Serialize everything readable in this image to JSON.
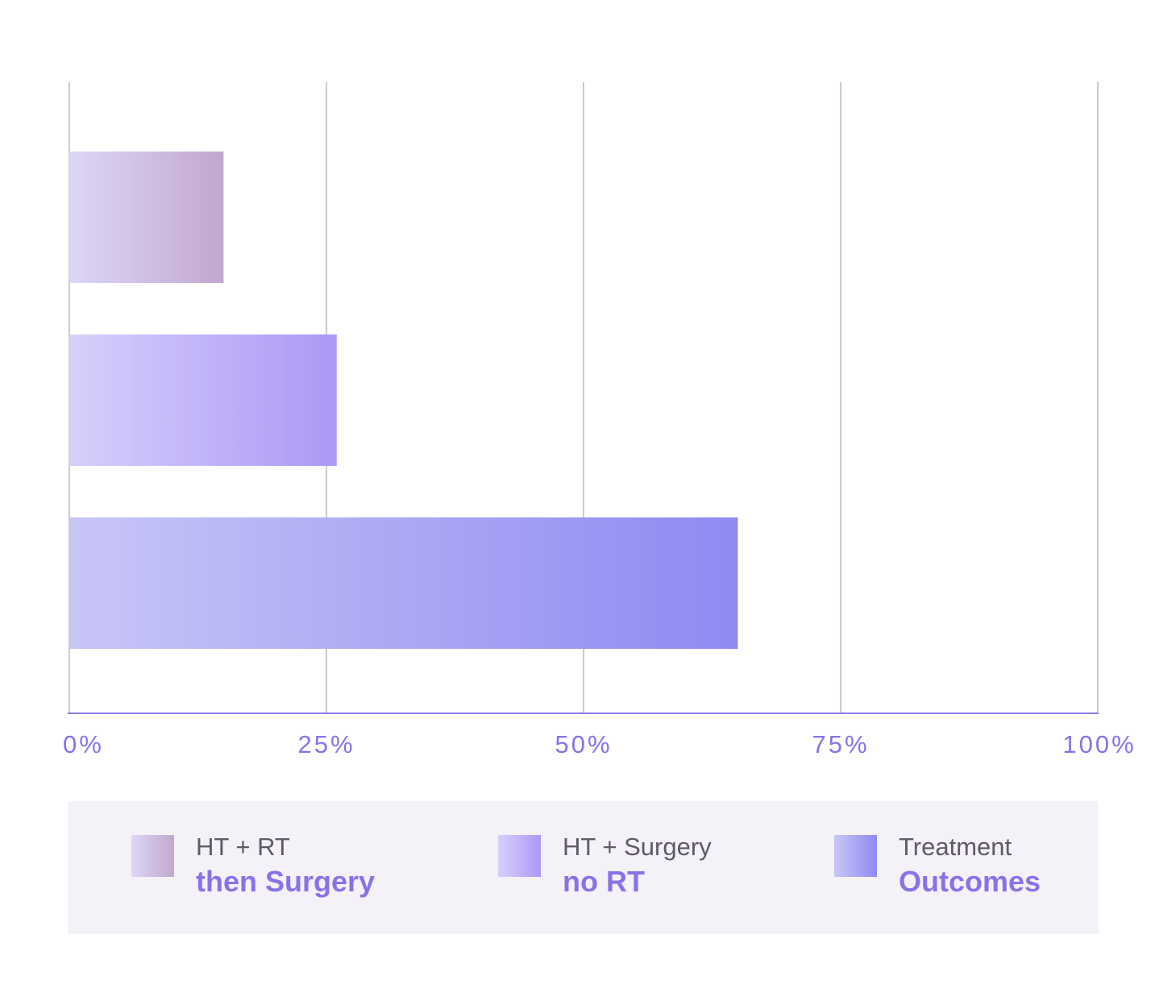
{
  "chart_data": {
    "type": "bar",
    "orientation": "horizontal",
    "title": "",
    "xlabel": "",
    "ylabel": "",
    "xlim": [
      0,
      100
    ],
    "tick_labels": [
      "0%",
      "25%",
      "50%",
      "75%",
      "100%"
    ],
    "grid": true,
    "legend_position": "bottom",
    "series": [
      {
        "name": "HT + RT then Surgery",
        "name_line1": "HT + RT",
        "name_line2": "then Surgery",
        "value": 15,
        "color_start": "#dcd6f6",
        "color_end": "#c2a8cd"
      },
      {
        "name": "HT + Surgery no RT",
        "name_line1": "HT + Surgery",
        "name_line2": "no RT",
        "value": 26,
        "color_start": "#d6d0fb",
        "color_end": "#ad98f6"
      },
      {
        "name": "Treatment Outcomes",
        "name_line1": "Treatment",
        "name_line2": "Outcomes",
        "value": 65,
        "color_start": "#c8c6f6",
        "color_end": "#8e8af2"
      }
    ]
  },
  "colors": {
    "gridline": "#a8a8ae",
    "axis": "#8d7de8",
    "tick_label": "#8872ea",
    "legend_bg": "#f5f1f8",
    "legend_text": "#5e5a66",
    "legend_accent": "#8872ea"
  }
}
